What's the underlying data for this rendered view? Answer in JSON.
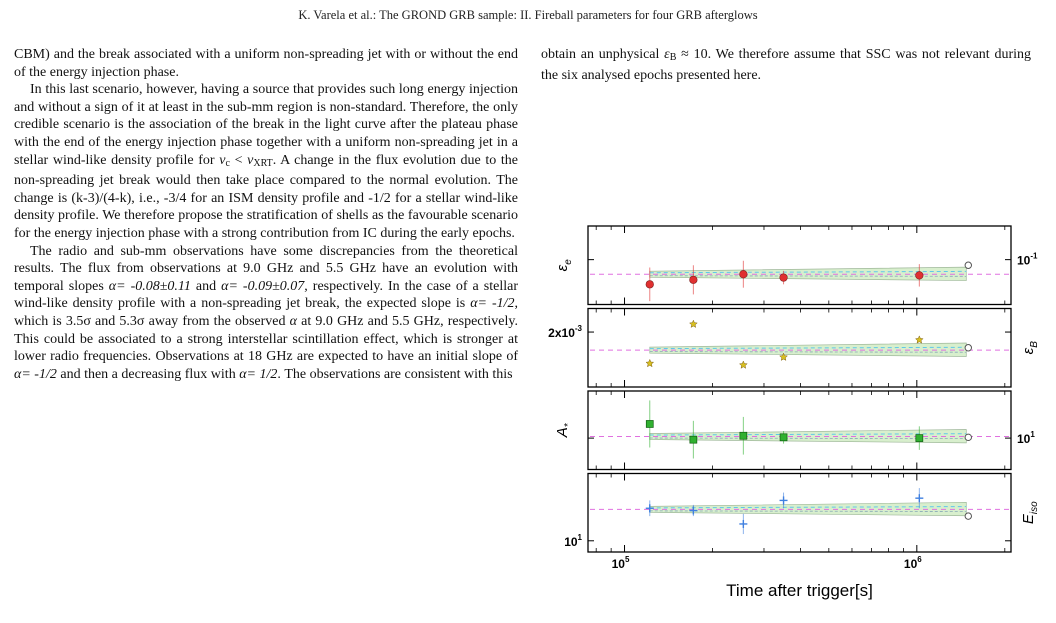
{
  "header": {
    "running_head": "K. Varela et al.: The GROND GRB sample: II. Fireball parameters for four GRB afterglows"
  },
  "left_column": {
    "p1": "CBM) and the break associated with a uniform non-spreading jet with or without the end of the energy injection phase.",
    "p2_a": "In this last scenario, however, having a source that provides such long energy injection and without a sign of it at least in the sub-mm region is non-standard. Therefore, the only credible scenario is the association of the break in the light curve after the plateau phase with the end of the energy injection phase together with a uniform non-spreading jet in a stellar wind-like density profile for ",
    "p2_nu": "ν",
    "p2_c": "c",
    "p2_lt": " < ",
    "p2_nu2": "ν",
    "p2_xrt": "XRT",
    "p2_b": ". A change in the flux evolution due to the non-spreading jet break would then take place compared to the normal evolution. The change is (k-3)/(4-k), i.e., -3/4 for an ISM density profile and -1/2 for a stellar wind-like density profile. We therefore propose the stratification of shells as the favourable scenario for the energy injection phase with a strong contribution from IC during the early epochs.",
    "p3_a": "The radio and sub-mm observations have some discrepancies from the theoretical results. The flux from observations at 9.0 GHz and 5.5 GHz have an evolution with temporal slopes ",
    "p3_alpha1": "α= -0.08±0.11",
    "p3_and": " and ",
    "p3_alpha2": "α= -0.09±0.07",
    "p3_b": ", respectively. In the case of a stellar wind-like density profile with a non-spreading jet break, the expected slope is ",
    "p3_alpha3": "α= -1/2",
    "p3_c": ", which is 3.5σ and 5.3σ away from the observed ",
    "p3_alpha4": "α",
    "p3_d": " at 9.0 GHz and 5.5 GHz, respectively. This could be associated to a strong interstellar scintillation effect, which is stronger at lower radio frequencies. Observations at 18 GHz are expected to have an initial slope of ",
    "p3_alpha5": "α= -1/2",
    "p3_e": " and then a decreasing flux with ",
    "p3_alpha6": "α= 1/2",
    "p3_f": ". The observations are consistent with this"
  },
  "right_column": {
    "p1_a": "obtain an unphysical ",
    "p1_eps": "ε",
    "p1_B": "B",
    "p1_b": " ≈ 10. We therefore assume that SSC was not relevant during the six analysed epochs presented here."
  },
  "chart_data": {
    "type": "scatter",
    "x_scale": "log",
    "xlabel": "Time after trigger[s]",
    "xlim": [
      75000,
      2100000
    ],
    "x_ticks": [
      {
        "value": 100000,
        "base": "10",
        "exp": "5"
      },
      {
        "value": 1000000,
        "base": "10",
        "exp": "6"
      }
    ],
    "x": [
      122000,
      172000,
      255000,
      350000,
      1020000,
      1500000
    ],
    "panels": [
      {
        "key": "eps_e",
        "ylabel_sym": "ε",
        "ylabel_mod": "e",
        "ylabel_side": "left",
        "tick_label_base": "10",
        "tick_label_exp": "-1",
        "tick_side": "right",
        "marker": "circle",
        "color": "#e03030",
        "values": [
          0.078,
          0.082,
          0.087,
          0.084,
          0.086,
          0.095
        ],
        "errors": [
          0.015,
          0.013,
          0.012,
          0.006,
          0.01,
          0
        ],
        "reference": 0.087,
        "ylim": [
          0.06,
          0.13
        ],
        "tick_value": 0.1
      },
      {
        "key": "eps_B",
        "ylabel_sym": "ε",
        "ylabel_mod": "B",
        "ylabel_side": "right",
        "tick_label_base": "2x10",
        "tick_label_exp": "-3",
        "tick_side": "left",
        "marker": "star",
        "color": "#d8c020",
        "values": [
          0.0016,
          0.0021,
          0.00158,
          0.00168,
          0.0019,
          0.0018
        ],
        "errors": [
          0,
          0,
          0,
          0,
          0,
          0
        ],
        "reference": 0.00177,
        "ylim": [
          0.0013,
          0.0023
        ],
        "tick_value": 0.002
      },
      {
        "key": "A_star",
        "ylabel_sym": "A",
        "ylabel_mod": "*",
        "ylabel_side": "left",
        "tick_label_base": "10",
        "tick_label_exp": "1",
        "tick_side": "right",
        "marker": "square",
        "color": "#30b030",
        "values": [
          11.8,
          9.8,
          10.3,
          10.1,
          10.0,
          10.1
        ],
        "errors": [
          3.0,
          2.4,
          2.4,
          0.8,
          1.5,
          0
        ],
        "reference": 10.2,
        "ylim": [
          6,
          16
        ],
        "tick_value": 10
      },
      {
        "key": "E_iso",
        "ylabel_sym": "E",
        "ylabel_mod": "iso",
        "ylabel_side": "right",
        "tick_label_base": "10",
        "tick_label_exp": "1",
        "tick_side": "left",
        "marker": "plus",
        "color": "#4080e0",
        "values": [
          12.9,
          12.7,
          11.5,
          13.6,
          13.8,
          12.2
        ],
        "errors": [
          0.7,
          0.5,
          0.9,
          0.7,
          0.9,
          0
        ],
        "reference": 12.8,
        "ylim": [
          9,
          16
        ],
        "tick_value": 10
      }
    ]
  }
}
